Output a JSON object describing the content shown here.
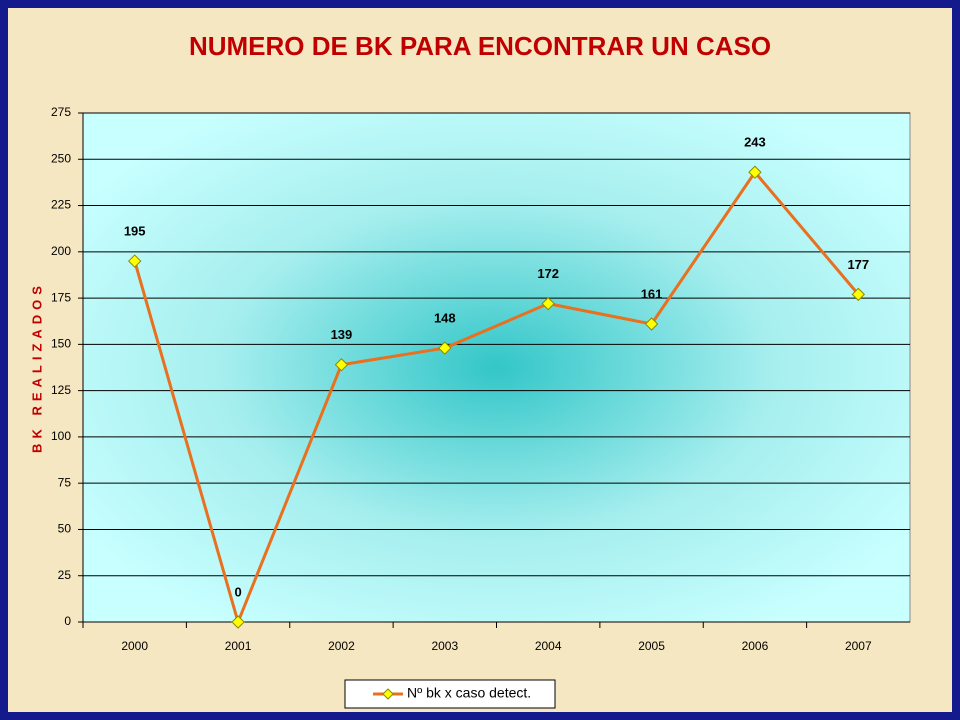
{
  "chart_data": {
    "type": "line",
    "title": "NUMERO DE  BK PARA ENCONTRAR UN CASO",
    "y_label": "BK REALIZADOS",
    "categories": [
      "2000",
      "2001",
      "2002",
      "2003",
      "2004",
      "2005",
      "2006",
      "2007"
    ],
    "series": [
      {
        "name": "Nº bk x caso detect.",
        "color": "#e8701e",
        "marker_color": "#ffff00",
        "values": [
          195,
          0,
          139,
          148,
          172,
          161,
          243,
          177
        ]
      }
    ],
    "ylim": [
      0,
      275
    ],
    "yticks": [
      0,
      25,
      50,
      75,
      100,
      125,
      150,
      175,
      200,
      225,
      250,
      275
    ],
    "grid": true,
    "legend": "bottom",
    "data_labels": true
  }
}
